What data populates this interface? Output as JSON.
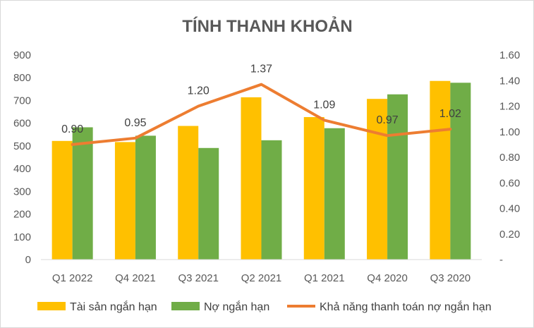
{
  "chart_data": {
    "type": "bar",
    "title": "TÍNH THANH KHOẢN",
    "categories": [
      "Q1 2022",
      "Q4 2021",
      "Q3 2021",
      "Q2 2021",
      "Q1 2021",
      "Q4 2020",
      "Q3 2020"
    ],
    "series": [
      {
        "name": "Tài sản ngắn hạn",
        "type": "bar",
        "axis": "left",
        "color": "#FFC000",
        "values": [
          522,
          517,
          588,
          714,
          627,
          707,
          786
        ]
      },
      {
        "name": "Nợ ngắn hạn",
        "type": "bar",
        "axis": "left",
        "color": "#70AD47",
        "values": [
          582,
          545,
          491,
          525,
          578,
          727,
          778
        ]
      },
      {
        "name": "Khả năng thanh toán nợ ngắn hạn",
        "type": "line",
        "axis": "right",
        "color": "#ED7D31",
        "values": [
          0.9,
          0.95,
          1.2,
          1.37,
          1.09,
          0.97,
          1.02
        ],
        "data_labels": [
          "0.90",
          "0.95",
          "1.20",
          "1.37",
          "1.09",
          "0.97",
          "1.02"
        ]
      }
    ],
    "y_left": {
      "ylim": [
        0,
        900
      ],
      "ticks": [
        "0",
        "100",
        "200",
        "300",
        "400",
        "500",
        "600",
        "700",
        "800",
        "900"
      ]
    },
    "y_right": {
      "ylim": [
        0,
        1.6
      ],
      "ticks": [
        "-",
        "0.20",
        "0.40",
        "0.60",
        "0.80",
        "1.00",
        "1.20",
        "1.40",
        "1.60"
      ]
    },
    "grid": false,
    "legend_position": "bottom"
  }
}
